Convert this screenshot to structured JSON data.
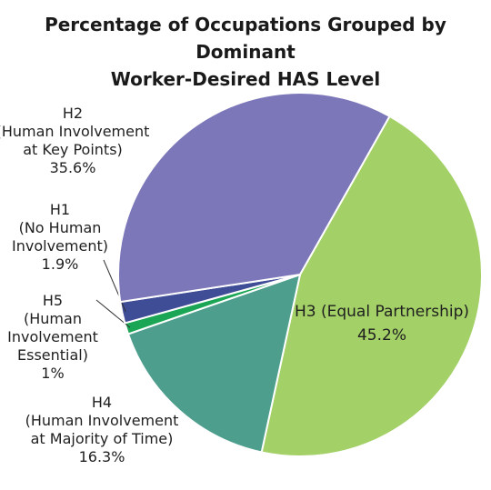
{
  "chart_data": {
    "type": "pie",
    "title_lines": [
      "Percentage of Occupations Grouped by Dominant",
      "Worker-Desired HAS Level"
    ],
    "slices": [
      {
        "label_lines": [
          "H3 (Equal Partnership)"
        ],
        "value_label": "45.2%",
        "value": 45.2,
        "color": "#a3d067"
      },
      {
        "label_lines": [
          "H4",
          "(Human Involvement",
          "at Majority of Time)"
        ],
        "value_label": "16.3%",
        "value": 16.3,
        "color": "#4d9e8c"
      },
      {
        "label_lines": [
          "H5",
          "(Human",
          "Involvement",
          "Essential)"
        ],
        "value_label": "1%",
        "value": 1.0,
        "color": "#1aa654"
      },
      {
        "label_lines": [
          "H1",
          "(No Human",
          "Involvement)"
        ],
        "value_label": "1.9%",
        "value": 1.9,
        "color": "#3f4c96"
      },
      {
        "label_lines": [
          "H2",
          "(Human Involvement",
          "at Key Points)"
        ],
        "value_label": "35.6%",
        "value": 35.6,
        "color": "#7b77b9"
      }
    ],
    "legend": "none"
  }
}
